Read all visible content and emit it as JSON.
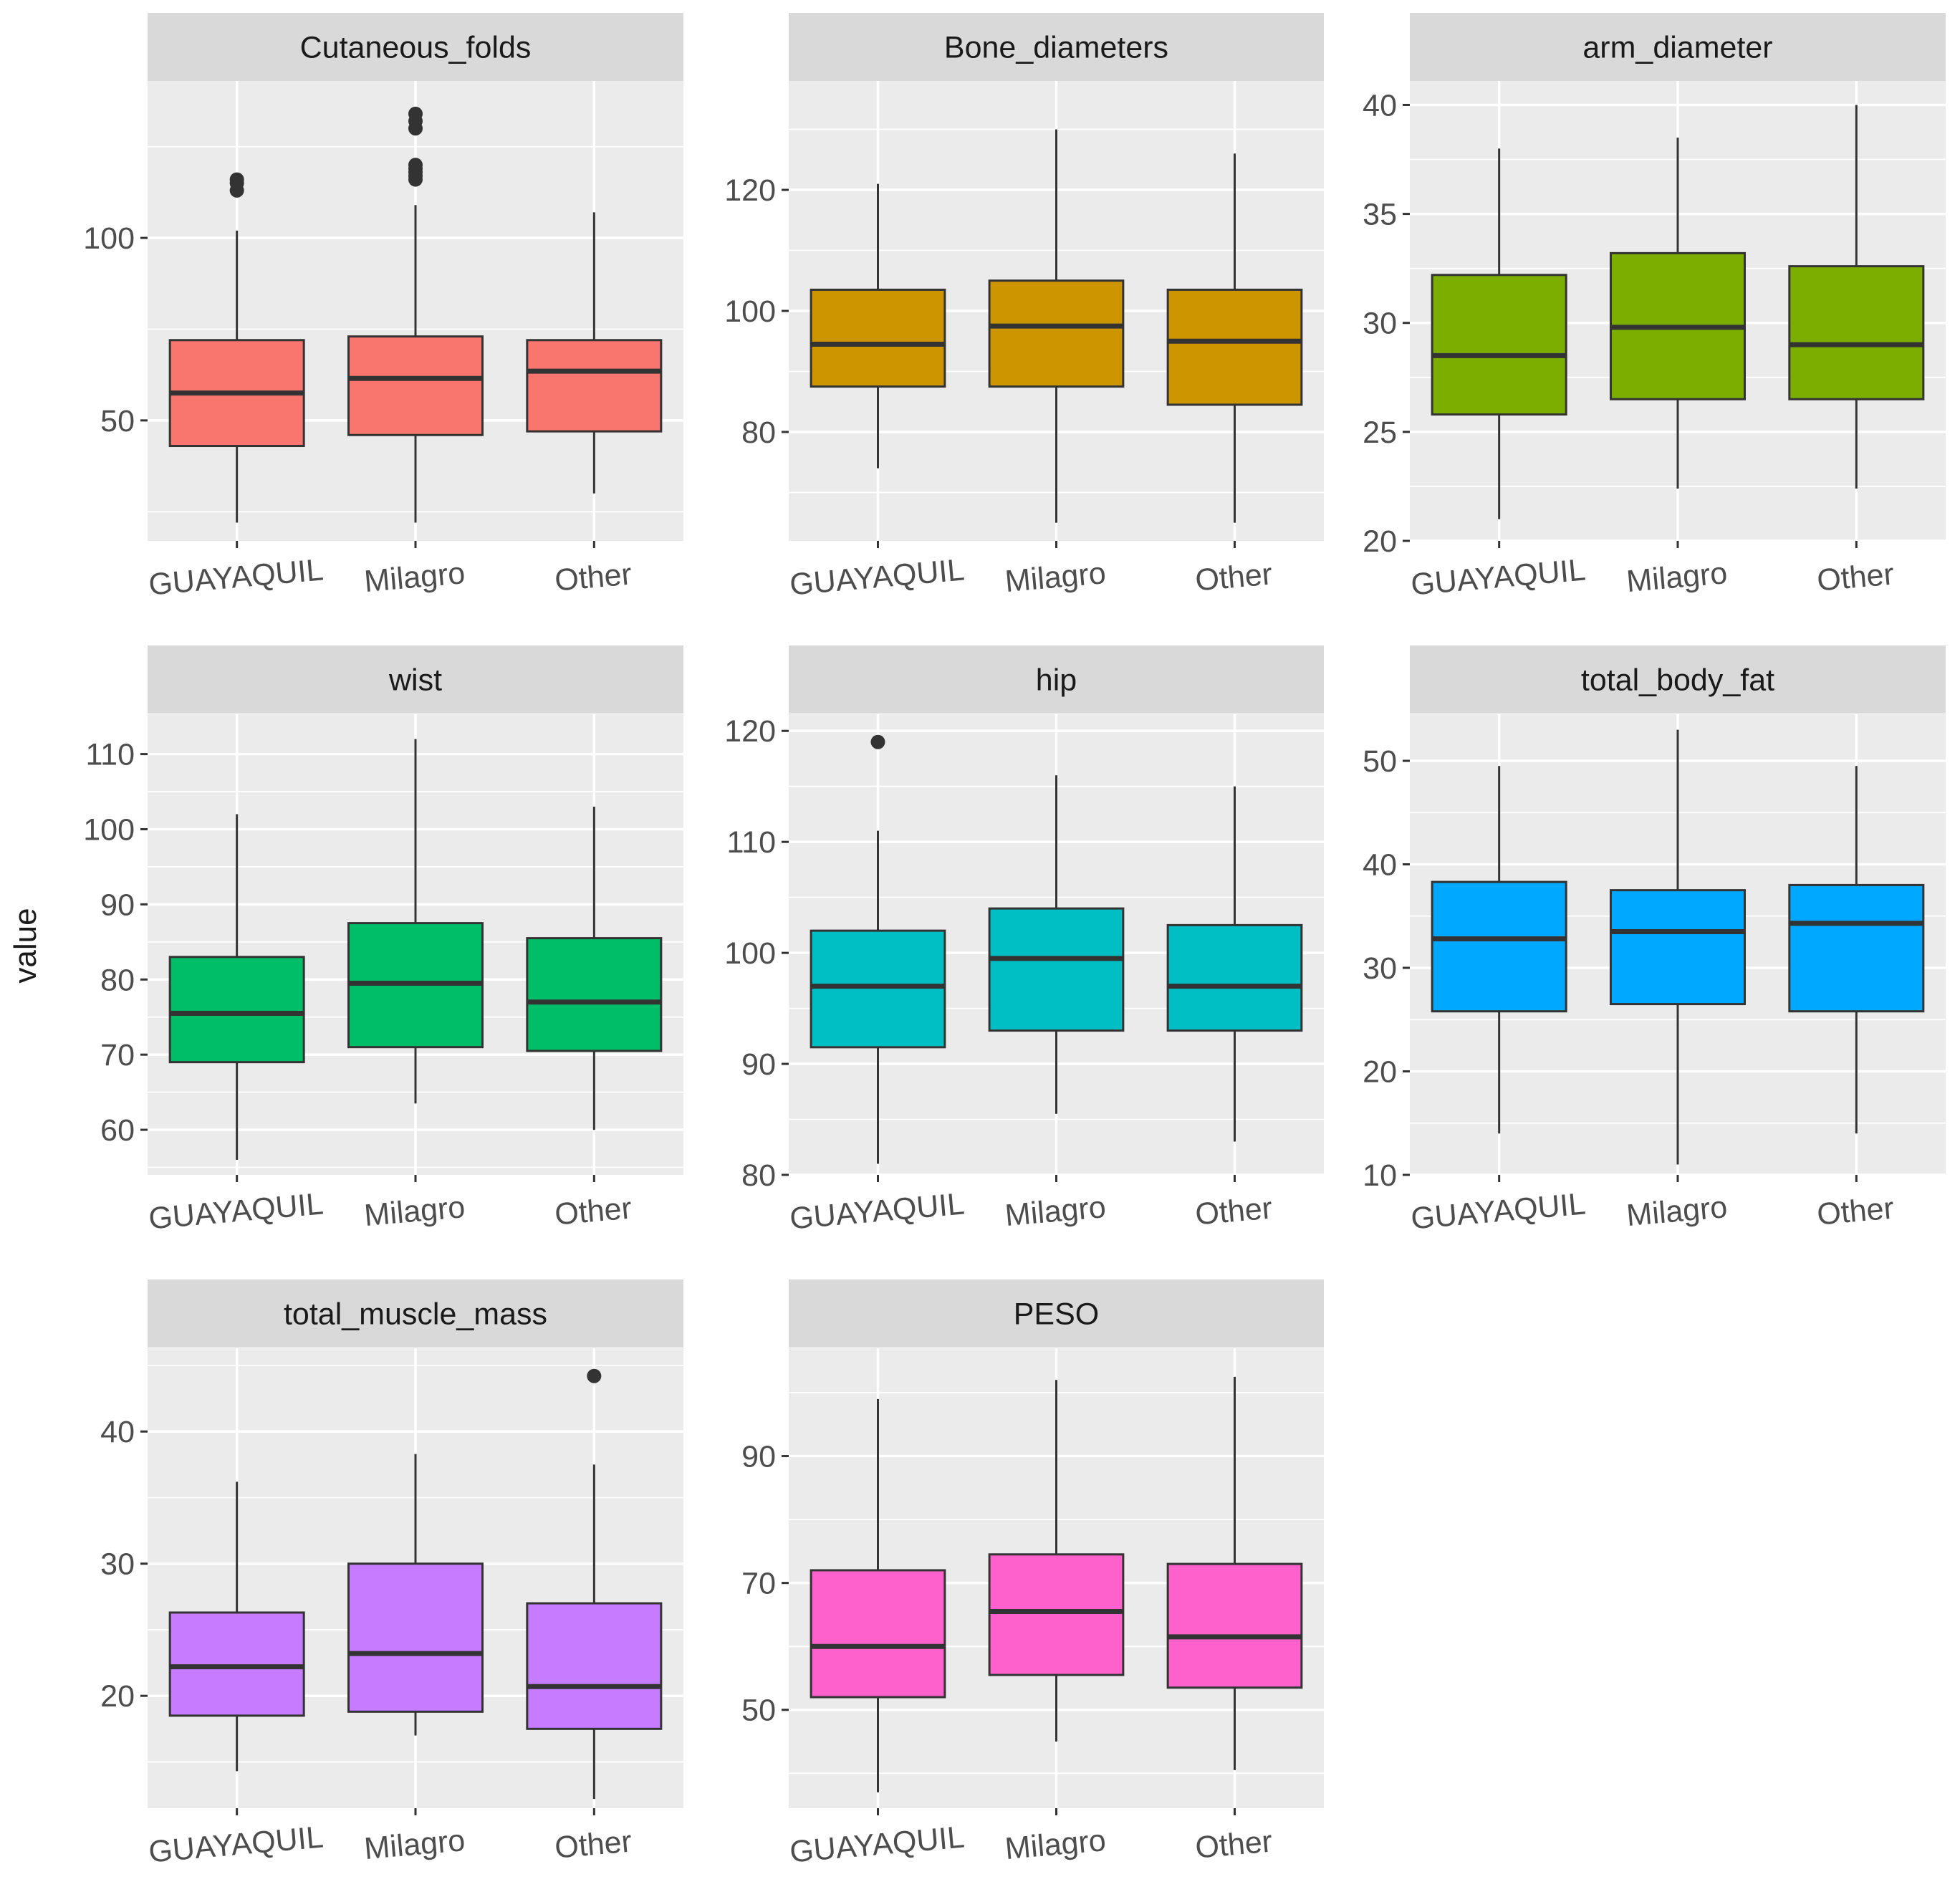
{
  "figure": {
    "ylabel": "value",
    "groups": [
      "GUAYAQUIL",
      "Milagro",
      "Other"
    ],
    "background": "#ffffff",
    "panel_background": "#ebebeb",
    "strip_background": "#d9d9d9",
    "grid_color": "#ffffff",
    "text_color": "#1a1a1a",
    "tick_text_color": "#4d4d4d"
  },
  "chart_data": [
    {
      "type": "box",
      "title": "Cutaneous_folds",
      "fill": "#F8766D",
      "ylim": [
        17,
        143
      ],
      "yticks": [
        50,
        100
      ],
      "minor_yticks": [
        25,
        75,
        125
      ],
      "categories": [
        "GUAYAQUIL",
        "Milagro",
        "Other"
      ],
      "boxes": [
        {
          "min": 22,
          "q1": 43,
          "median": 57.5,
          "q3": 72,
          "max": 102,
          "outliers": [
            113,
            115,
            116
          ]
        },
        {
          "min": 22,
          "q1": 46,
          "median": 61.5,
          "q3": 73,
          "max": 109,
          "outliers": [
            116,
            117,
            118,
            119,
            120,
            130,
            132,
            134
          ]
        },
        {
          "min": 30,
          "q1": 47,
          "median": 63.5,
          "q3": 72,
          "max": 107,
          "outliers": []
        }
      ]
    },
    {
      "type": "box",
      "title": "Bone_diameters",
      "fill": "#CD9600",
      "ylim": [
        62,
        138
      ],
      "yticks": [
        80,
        100,
        120
      ],
      "minor_yticks": [
        70,
        90,
        110,
        130
      ],
      "categories": [
        "GUAYAQUIL",
        "Milagro",
        "Other"
      ],
      "boxes": [
        {
          "min": 74,
          "q1": 87.5,
          "median": 94.5,
          "q3": 103.5,
          "max": 121,
          "outliers": []
        },
        {
          "min": 65,
          "q1": 87.5,
          "median": 97.5,
          "q3": 105,
          "max": 130,
          "outliers": []
        },
        {
          "min": 65,
          "q1": 84.5,
          "median": 95,
          "q3": 103.5,
          "max": 126,
          "outliers": []
        }
      ]
    },
    {
      "type": "box",
      "title": "arm_diameter",
      "fill": "#7CAE00",
      "ylim": [
        20,
        41.1
      ],
      "yticks": [
        20,
        25,
        30,
        35,
        40
      ],
      "minor_yticks": [
        22.5,
        27.5,
        32.5,
        37.5
      ],
      "categories": [
        "GUAYAQUIL",
        "Milagro",
        "Other"
      ],
      "boxes": [
        {
          "min": 21,
          "q1": 25.8,
          "median": 28.5,
          "q3": 32.2,
          "max": 38,
          "outliers": []
        },
        {
          "min": 22.4,
          "q1": 26.5,
          "median": 29.8,
          "q3": 33.2,
          "max": 38.5,
          "outliers": []
        },
        {
          "min": 22.4,
          "q1": 26.5,
          "median": 29,
          "q3": 32.6,
          "max": 40,
          "outliers": []
        }
      ]
    },
    {
      "type": "box",
      "title": "wist",
      "fill": "#00BE67",
      "ylim": [
        54,
        115.3
      ],
      "yticks": [
        60,
        70,
        80,
        90,
        100,
        110
      ],
      "minor_yticks": [
        55,
        65,
        75,
        85,
        95,
        105
      ],
      "categories": [
        "GUAYAQUIL",
        "Milagro",
        "Other"
      ],
      "boxes": [
        {
          "min": 56,
          "q1": 69,
          "median": 75.5,
          "q3": 83,
          "max": 102,
          "outliers": []
        },
        {
          "min": 63.5,
          "q1": 71,
          "median": 79.5,
          "q3": 87.5,
          "max": 112,
          "outliers": []
        },
        {
          "min": 60,
          "q1": 70.5,
          "median": 77,
          "q3": 85.5,
          "max": 103,
          "outliers": []
        }
      ]
    },
    {
      "type": "box",
      "title": "hip",
      "fill": "#00BFC4",
      "ylim": [
        80,
        121.5
      ],
      "yticks": [
        80,
        90,
        100,
        110,
        120
      ],
      "minor_yticks": [
        85,
        95,
        105,
        115
      ],
      "categories": [
        "GUAYAQUIL",
        "Milagro",
        "Other"
      ],
      "boxes": [
        {
          "min": 81,
          "q1": 91.5,
          "median": 97,
          "q3": 102,
          "max": 111,
          "outliers": [
            119
          ]
        },
        {
          "min": 85.5,
          "q1": 93,
          "median": 99.5,
          "q3": 104,
          "max": 116,
          "outliers": []
        },
        {
          "min": 83,
          "q1": 93,
          "median": 97,
          "q3": 102.5,
          "max": 115,
          "outliers": []
        }
      ]
    },
    {
      "type": "box",
      "title": "total_body_fat",
      "fill": "#00A9FF",
      "ylim": [
        10,
        54.5
      ],
      "yticks": [
        10,
        20,
        30,
        40,
        50
      ],
      "minor_yticks": [
        15,
        25,
        35,
        45
      ],
      "categories": [
        "GUAYAQUIL",
        "Milagro",
        "Other"
      ],
      "boxes": [
        {
          "min": 14,
          "q1": 25.8,
          "median": 32.8,
          "q3": 38.3,
          "max": 49.5,
          "outliers": []
        },
        {
          "min": 11,
          "q1": 26.5,
          "median": 33.5,
          "q3": 37.5,
          "max": 53,
          "outliers": []
        },
        {
          "min": 14,
          "q1": 25.8,
          "median": 34.3,
          "q3": 38,
          "max": 49.5,
          "outliers": []
        }
      ]
    },
    {
      "type": "box",
      "title": "total_muscle_mass",
      "fill": "#C77CFF",
      "ylim": [
        11.5,
        46.3
      ],
      "yticks": [
        20,
        30,
        40
      ],
      "minor_yticks": [
        15,
        25,
        35,
        45
      ],
      "categories": [
        "GUAYAQUIL",
        "Milagro",
        "Other"
      ],
      "boxes": [
        {
          "min": 14.3,
          "q1": 18.5,
          "median": 22.2,
          "q3": 26.3,
          "max": 36.2,
          "outliers": []
        },
        {
          "min": 17,
          "q1": 18.8,
          "median": 23.2,
          "q3": 30,
          "max": 38.3,
          "outliers": []
        },
        {
          "min": 12.2,
          "q1": 17.5,
          "median": 20.7,
          "q3": 27,
          "max": 37.5,
          "outliers": [
            44.2
          ]
        }
      ]
    },
    {
      "type": "box",
      "title": "PESO",
      "fill": "#FF61CC",
      "ylim": [
        34.5,
        107
      ],
      "yticks": [
        50,
        70,
        90
      ],
      "minor_yticks": [
        40,
        60,
        80,
        100
      ],
      "categories": [
        "GUAYAQUIL",
        "Milagro",
        "Other"
      ],
      "boxes": [
        {
          "min": 37,
          "q1": 52,
          "median": 60,
          "q3": 72,
          "max": 99,
          "outliers": []
        },
        {
          "min": 45,
          "q1": 55.5,
          "median": 65.5,
          "q3": 74.5,
          "max": 102,
          "outliers": []
        },
        {
          "min": 40.5,
          "q1": 53.5,
          "median": 61.5,
          "q3": 73,
          "max": 102.5,
          "outliers": []
        }
      ]
    }
  ]
}
